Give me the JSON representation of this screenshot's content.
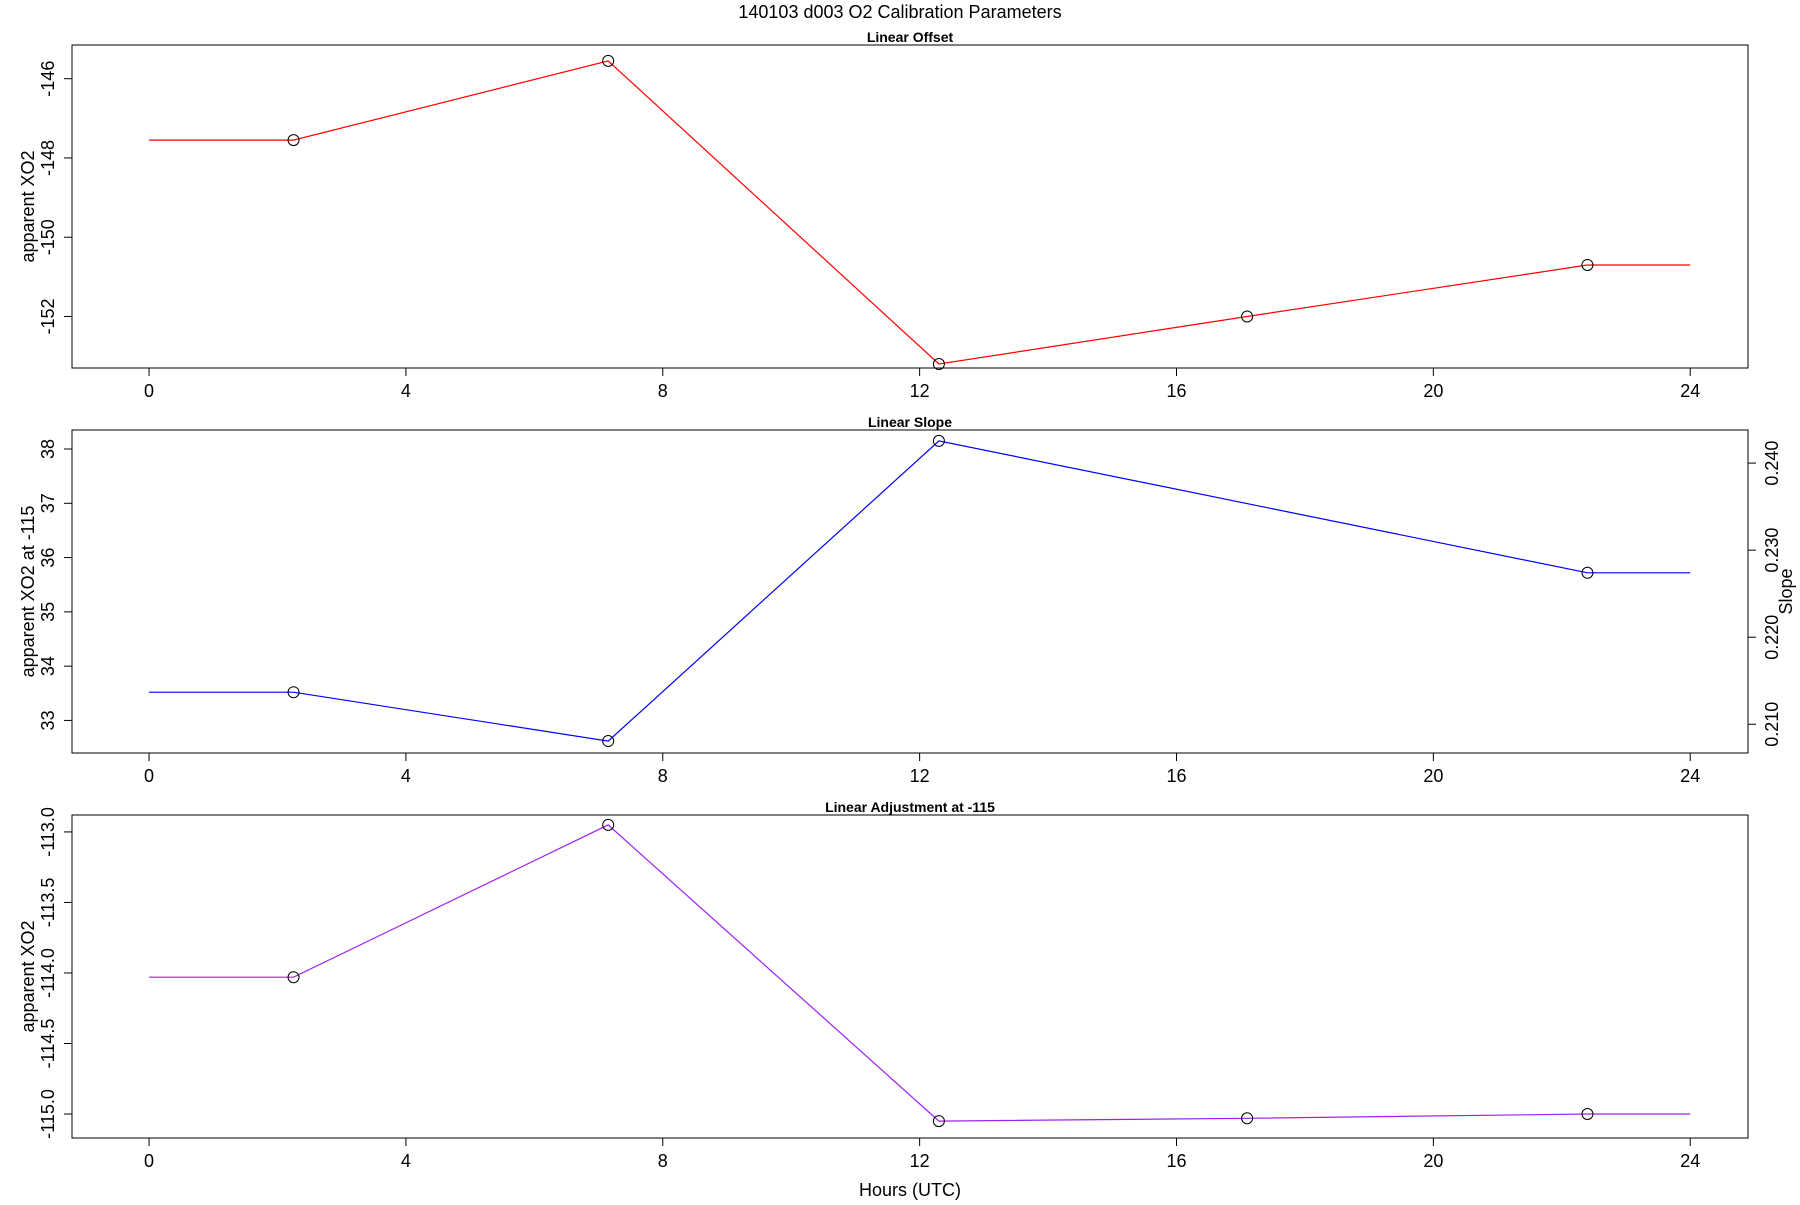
{
  "figure": {
    "title": "140103   d003   O2 Calibration Parameters",
    "xlabel": "Hours (UTC)"
  },
  "chart_data": [
    {
      "type": "line",
      "title": "Linear Offset",
      "xlabel": "",
      "ylabel": "apparent XO2",
      "xlim": [
        -1.2,
        24.9
      ],
      "ylim": [
        -153.3,
        -145.15
      ],
      "xticks": [
        0,
        4,
        8,
        12,
        16,
        20,
        24
      ],
      "xtick_labels": [
        "0",
        "4",
        "8",
        "12",
        "16",
        "20",
        "24"
      ],
      "yticks": [
        -146,
        -148,
        -150,
        -152
      ],
      "ytick_labels": [
        "-146",
        "-148",
        "-150",
        "-152"
      ],
      "line_color": "#ff0000",
      "series": [
        {
          "line_x": [
            0,
            2.25,
            7.15,
            12.3,
            17.1,
            22.4,
            24
          ],
          "line_y": [
            -147.55,
            -147.55,
            -145.55,
            -153.2,
            -152.0,
            -150.7,
            -150.7
          ],
          "points_x": [
            2.25,
            7.15,
            12.3,
            17.1,
            22.4
          ],
          "points_y": [
            -147.55,
            -145.55,
            -153.2,
            -152.0,
            -150.7
          ]
        }
      ]
    },
    {
      "type": "line",
      "title": "Linear Slope",
      "xlabel": "",
      "ylabel": "apparent XO2 at -115",
      "y2label": "Slope",
      "xlim": [
        -1.2,
        24.9
      ],
      "ylim": [
        32.4,
        38.35
      ],
      "y2lim": [
        0.2067,
        0.2438
      ],
      "xticks": [
        0,
        4,
        8,
        12,
        16,
        20,
        24
      ],
      "xtick_labels": [
        "0",
        "4",
        "8",
        "12",
        "16",
        "20",
        "24"
      ],
      "yticks": [
        33,
        34,
        35,
        36,
        37,
        38
      ],
      "ytick_labels": [
        "33",
        "34",
        "35",
        "36",
        "37",
        "38"
      ],
      "y2ticks": [
        0.21,
        0.22,
        0.23,
        0.24
      ],
      "y2tick_labels": [
        "0.210",
        "0.220",
        "0.230",
        "0.240"
      ],
      "line_color": "#0000ff",
      "series": [
        {
          "line_x": [
            0,
            2.25,
            7.15,
            12.3,
            22.4,
            24
          ],
          "line_y": [
            33.52,
            33.52,
            32.62,
            38.15,
            35.72,
            35.72
          ],
          "points_x": [
            2.25,
            7.15,
            12.3,
            22.4
          ],
          "points_y": [
            33.52,
            32.62,
            38.15,
            35.72
          ]
        }
      ]
    },
    {
      "type": "line",
      "title": "Linear Adjustment at -115",
      "xlabel": "Hours (UTC)",
      "ylabel": "apparent XO2",
      "xlim": [
        -1.2,
        24.9
      ],
      "ylim": [
        -115.17,
        -112.88
      ],
      "xticks": [
        0,
        4,
        8,
        12,
        16,
        20,
        24
      ],
      "xtick_labels": [
        "0",
        "4",
        "8",
        "12",
        "16",
        "20",
        "24"
      ],
      "yticks": [
        -113.0,
        -113.5,
        -114.0,
        -114.5,
        -115.0
      ],
      "ytick_labels": [
        "-113.0",
        "-113.5",
        "-114.0",
        "-114.5",
        "-115.0"
      ],
      "line_color": "#a020f0",
      "series": [
        {
          "line_x": [
            0,
            2.25,
            7.15,
            12.3,
            17.1,
            22.4,
            24
          ],
          "line_y": [
            -114.03,
            -114.03,
            -112.95,
            -115.05,
            -115.03,
            -115.0,
            -115.0
          ],
          "points_x": [
            2.25,
            7.15,
            12.3,
            17.1,
            22.4
          ],
          "points_y": [
            -114.03,
            -112.95,
            -115.05,
            -115.03,
            -115.0
          ]
        }
      ]
    }
  ]
}
